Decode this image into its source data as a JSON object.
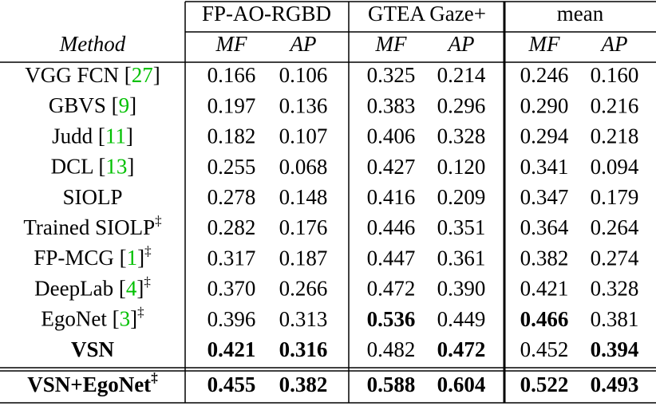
{
  "header": {
    "groups": [
      "FP-AO-RGBD",
      "GTEA Gaze+",
      "mean"
    ],
    "method": "Method",
    "metrics": [
      "MF",
      "AP"
    ]
  },
  "ref_brackets": [
    "[",
    "]"
  ],
  "table": {
    "rows": [
      {
        "method": "VGG FCN",
        "ref": "27",
        "values": [
          "0.166",
          "0.106",
          "0.325",
          "0.214",
          "0.246",
          "0.160"
        ],
        "bold": []
      },
      {
        "method": "GBVS",
        "ref": "9",
        "values": [
          "0.197",
          "0.136",
          "0.383",
          "0.296",
          "0.290",
          "0.216"
        ],
        "bold": []
      },
      {
        "method": "Judd",
        "ref": "11",
        "values": [
          "0.182",
          "0.107",
          "0.406",
          "0.328",
          "0.294",
          "0.218"
        ],
        "bold": []
      },
      {
        "method": "DCL",
        "ref": "13",
        "values": [
          "0.255",
          "0.068",
          "0.427",
          "0.120",
          "0.341",
          "0.094"
        ],
        "bold": []
      },
      {
        "method": "SIOLP",
        "values": [
          "0.278",
          "0.148",
          "0.416",
          "0.209",
          "0.347",
          "0.179"
        ],
        "bold": []
      },
      {
        "method": "Trained SIOLP",
        "mark": "‡",
        "values": [
          "0.282",
          "0.176",
          "0.446",
          "0.351",
          "0.364",
          "0.264"
        ],
        "bold": []
      },
      {
        "method": "FP-MCG",
        "ref": "1",
        "mark": "‡",
        "values": [
          "0.317",
          "0.187",
          "0.447",
          "0.361",
          "0.382",
          "0.274"
        ],
        "bold": []
      },
      {
        "method": "DeepLab",
        "ref": "4",
        "mark": "‡",
        "values": [
          "0.370",
          "0.266",
          "0.472",
          "0.390",
          "0.421",
          "0.328"
        ],
        "bold": []
      },
      {
        "method": "EgoNet",
        "ref": "3",
        "mark": "‡",
        "values": [
          "0.396",
          "0.313",
          "0.536",
          "0.449",
          "0.466",
          "0.381"
        ],
        "bold": [
          2,
          4
        ]
      },
      {
        "method": "VSN",
        "method_bold": true,
        "values": [
          "0.421",
          "0.316",
          "0.482",
          "0.472",
          "0.452",
          "0.394"
        ],
        "bold": [
          0,
          1,
          3,
          5
        ]
      },
      {
        "method": "VSN+EgoNet",
        "method_bold": true,
        "mark": "‡",
        "values": [
          "0.455",
          "0.382",
          "0.588",
          "0.604",
          "0.522",
          "0.493"
        ],
        "bold": [
          0,
          1,
          2,
          3,
          4,
          5
        ]
      }
    ]
  }
}
